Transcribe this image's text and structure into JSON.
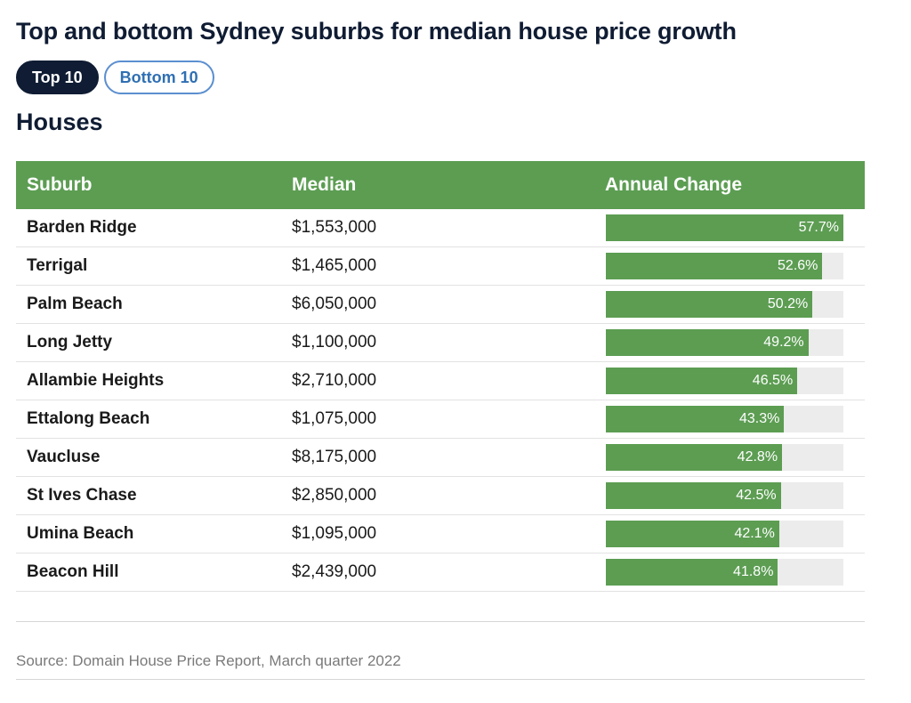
{
  "title": "Top and bottom Sydney suburbs for median house price growth",
  "tabs": [
    {
      "label": "Top 10",
      "active": true
    },
    {
      "label": "Bottom 10",
      "active": false
    }
  ],
  "subtitle": "Houses",
  "colors": {
    "green": "#5c9d52",
    "navy": "#0f1c33",
    "track": "#ececec"
  },
  "chart_data": {
    "type": "table",
    "columns": [
      "Suburb",
      "Median",
      "Annual Change"
    ],
    "bar_max": 57.7,
    "rows": [
      {
        "suburb": "Barden Ridge",
        "median": "$1,553,000",
        "change": 57.7,
        "change_label": "57.7%"
      },
      {
        "suburb": "Terrigal",
        "median": "$1,465,000",
        "change": 52.6,
        "change_label": "52.6%"
      },
      {
        "suburb": "Palm Beach",
        "median": "$6,050,000",
        "change": 50.2,
        "change_label": "50.2%"
      },
      {
        "suburb": "Long Jetty",
        "median": "$1,100,000",
        "change": 49.2,
        "change_label": "49.2%"
      },
      {
        "suburb": "Allambie Heights",
        "median": "$2,710,000",
        "change": 46.5,
        "change_label": "46.5%"
      },
      {
        "suburb": "Ettalong Beach",
        "median": "$1,075,000",
        "change": 43.3,
        "change_label": "43.3%"
      },
      {
        "suburb": "Vaucluse",
        "median": "$8,175,000",
        "change": 42.8,
        "change_label": "42.8%"
      },
      {
        "suburb": "St Ives Chase",
        "median": "$2,850,000",
        "change": 42.5,
        "change_label": "42.5%"
      },
      {
        "suburb": "Umina Beach",
        "median": "$1,095,000",
        "change": 42.1,
        "change_label": "42.1%"
      },
      {
        "suburb": "Beacon Hill",
        "median": "$2,439,000",
        "change": 41.8,
        "change_label": "41.8%"
      }
    ]
  },
  "source": "Source: Domain House Price Report, March quarter 2022"
}
